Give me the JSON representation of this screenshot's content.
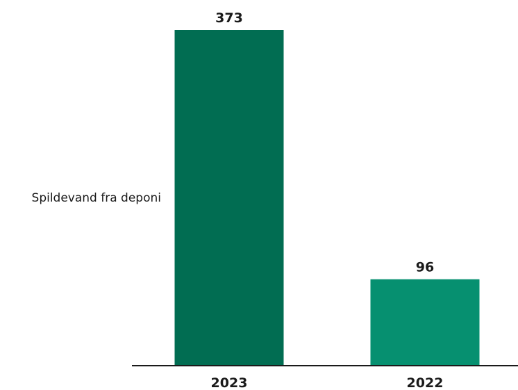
{
  "chart_data": {
    "type": "bar",
    "category": "Spildevand fra deponi",
    "x": [
      "2023",
      "2022"
    ],
    "series": [
      {
        "values": [
          373,
          96
        ],
        "colors": [
          "#016D52",
          "#069070"
        ]
      }
    ],
    "data_labels": [
      "373",
      "96"
    ],
    "ylim": [
      0,
      373
    ],
    "grid": false,
    "legend": "none",
    "axis_color": "#1a1a1a"
  }
}
